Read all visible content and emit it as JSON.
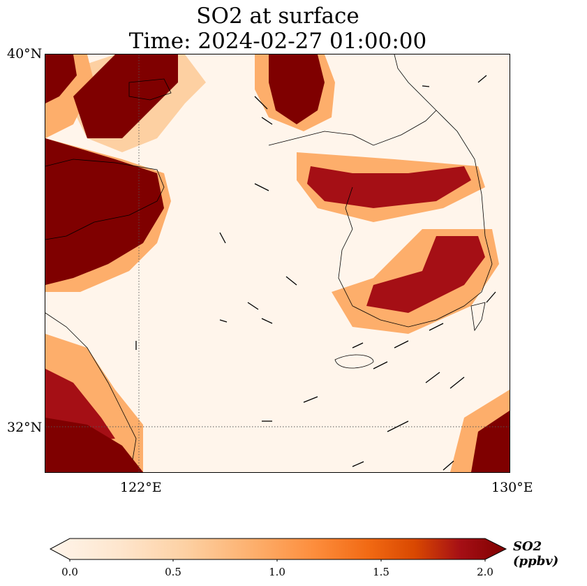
{
  "title": {
    "line1": "SO2 at surface",
    "line2": "Time: 2024-02-27 01:00:00"
  },
  "map": {
    "lat_labels": [
      "40°N",
      "32°N"
    ],
    "lon_labels": [
      "122°E",
      "130°E"
    ],
    "extent": {
      "lon_min": 120,
      "lon_max": 130,
      "lat_min": 31,
      "lat_max": 40
    },
    "gridlines": {
      "lon": [
        122
      ],
      "lat": [
        32
      ]
    }
  },
  "colorbar": {
    "label": "SO2 (ppbv)",
    "ticks": [
      "0.0",
      "0.5",
      "1.0",
      "1.5",
      "2.0"
    ],
    "min": 0.0,
    "max": 2.0,
    "colormap": [
      "#fff5eb",
      "#fee6ce",
      "#fdd0a2",
      "#fdae6b",
      "#fd8d3c",
      "#f16913",
      "#d94801",
      "#a50f15",
      "#7f0000"
    ]
  }
}
